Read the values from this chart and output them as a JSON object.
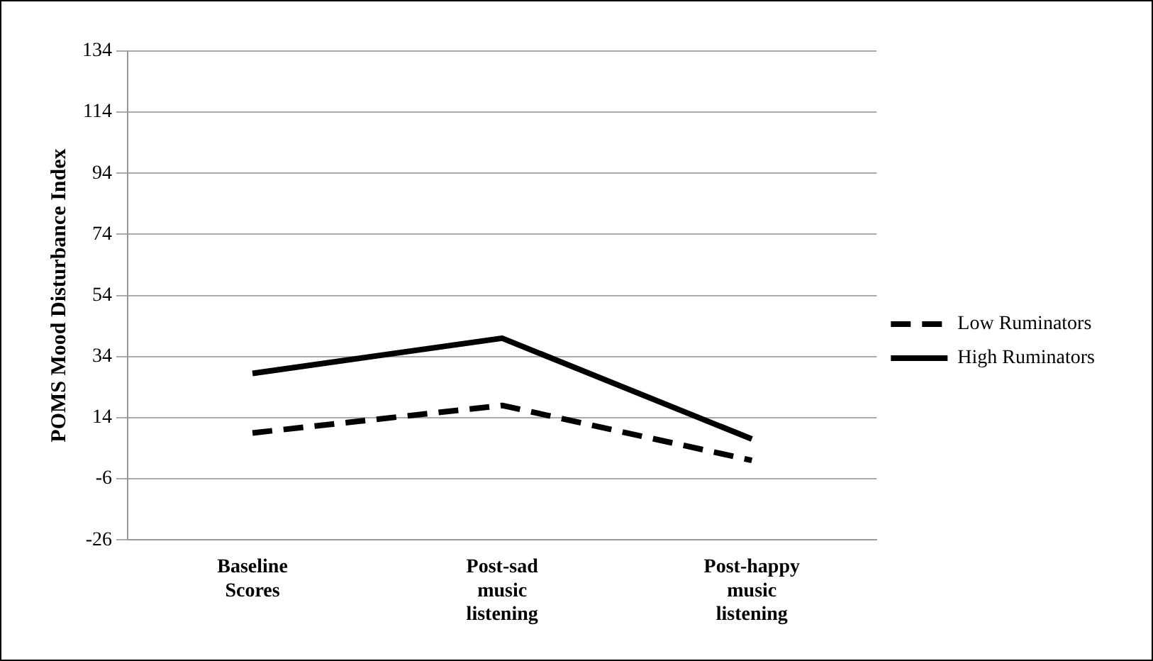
{
  "chart_data": {
    "type": "line",
    "ylabel": "POMS Mood Disturbance Index",
    "categories": [
      "Baseline Scores",
      "Post-sad music listening",
      "Post-happy music listening"
    ],
    "series": [
      {
        "name": "Low Ruminators",
        "color": "#000000",
        "line_style": "dashed",
        "values": [
          9,
          18,
          0
        ]
      },
      {
        "name": "High Ruminators",
        "color": "#000000",
        "line_style": "solid",
        "values": [
          28.5,
          40,
          7
        ]
      }
    ],
    "ylim": [
      -26,
      134
    ],
    "yticks": [
      -26,
      -6,
      14,
      34,
      54,
      74,
      94,
      114,
      134
    ],
    "grid": "y",
    "legend": "right",
    "marker": "none"
  }
}
